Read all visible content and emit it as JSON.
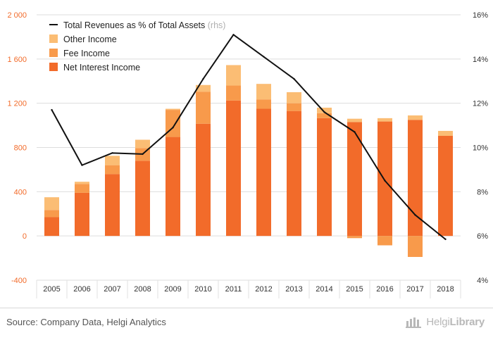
{
  "chart_data": {
    "type": "bar",
    "stacked": true,
    "categories": [
      "2005",
      "2006",
      "2007",
      "2008",
      "2009",
      "2010",
      "2011",
      "2012",
      "2013",
      "2014",
      "2015",
      "2016",
      "2017",
      "2018"
    ],
    "series": [
      {
        "name": "Net Interest Income",
        "color": "#f26b2a",
        "values": [
          170,
          390,
          560,
          680,
          895,
          1015,
          1225,
          1150,
          1130,
          1065,
          1030,
          1035,
          1050,
          905
        ]
      },
      {
        "name": "Fee Income",
        "color": "#f89a4b",
        "values": [
          65,
          80,
          80,
          115,
          245,
          290,
          135,
          85,
          70,
          45,
          -20,
          -85,
          -190,
          0
        ]
      },
      {
        "name": "Other Income",
        "color": "#fbbd74",
        "values": [
          115,
          20,
          85,
          75,
          10,
          60,
          185,
          140,
          100,
          50,
          30,
          30,
          40,
          45
        ]
      }
    ],
    "line_series": {
      "name": "Total Revenues as % of Total Assets",
      "suffix": " (rhs)",
      "color": "#111111",
      "values": [
        11.7,
        9.2,
        9.75,
        9.7,
        10.9,
        13.1,
        15.1,
        14.1,
        13.1,
        11.6,
        10.7,
        8.5,
        6.95,
        5.85
      ]
    },
    "y_left": {
      "min": -400,
      "max": 2000,
      "ticks": [
        -400,
        0,
        400,
        800,
        1200,
        1600,
        2000
      ],
      "tick_labels": [
        "-400",
        "0",
        "400",
        "800",
        "1 200",
        "1 600",
        "2 000"
      ]
    },
    "y_right": {
      "min": 4,
      "max": 16,
      "ticks": [
        4,
        6,
        8,
        10,
        12,
        14,
        16
      ],
      "tick_labels": [
        "4%",
        "6%",
        "8%",
        "10%",
        "12%",
        "14%",
        "16%"
      ]
    },
    "legend_position": "top-left",
    "grid": "horizontal",
    "colors": {
      "left_axis_text": "#f26b2a",
      "right_axis_text": "#333333",
      "grid": "#dddddd"
    }
  },
  "source_text": "Source: Company Data, Helgi Analytics",
  "brand": {
    "name_light": "Helgi",
    "name_bold": "Library",
    "icon": "helgi-library-logo-icon"
  }
}
